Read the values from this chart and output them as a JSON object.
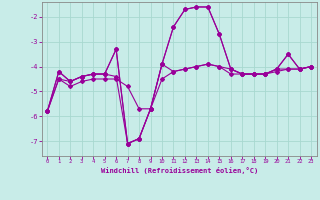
{
  "xlabel": "Windchill (Refroidissement éolien,°C)",
  "background_color": "#c8ece8",
  "grid_color": "#a8d8d0",
  "line_color": "#990099",
  "x": [
    0,
    1,
    2,
    3,
    4,
    5,
    6,
    7,
    8,
    9,
    10,
    11,
    12,
    13,
    14,
    15,
    16,
    17,
    18,
    19,
    20,
    21,
    22,
    23
  ],
  "line1": [
    -5.8,
    -4.2,
    -4.6,
    -4.4,
    -4.3,
    -4.3,
    -3.3,
    -7.1,
    -6.9,
    -5.7,
    -3.9,
    -2.4,
    -1.7,
    -1.6,
    -1.6,
    -2.7,
    -4.1,
    -4.3,
    -4.3,
    -4.3,
    -4.1,
    -3.5,
    -4.1,
    -4.0
  ],
  "line2": [
    -5.8,
    -4.5,
    -4.6,
    -4.4,
    -4.3,
    -4.3,
    -4.4,
    -7.1,
    -6.9,
    -5.7,
    -3.9,
    -4.2,
    -4.1,
    -4.0,
    -3.9,
    -4.0,
    -4.1,
    -4.3,
    -4.3,
    -4.3,
    -4.1,
    -4.1,
    -4.1,
    -4.0
  ],
  "line3": [
    -5.8,
    -4.2,
    -4.6,
    -4.4,
    -4.3,
    -4.3,
    -3.3,
    -7.1,
    -6.9,
    -5.7,
    -3.9,
    -2.4,
    -1.7,
    -1.6,
    -1.6,
    -2.7,
    -4.1,
    -4.3,
    -4.3,
    -4.3,
    -4.1,
    -3.5,
    -4.1,
    -4.0
  ],
  "line4": [
    -5.8,
    -4.5,
    -4.8,
    -4.6,
    -4.5,
    -4.5,
    -4.5,
    -4.8,
    -5.7,
    -5.7,
    -4.5,
    -4.2,
    -4.1,
    -4.0,
    -3.9,
    -4.0,
    -4.3,
    -4.3,
    -4.3,
    -4.3,
    -4.2,
    -4.1,
    -4.1,
    -4.0
  ],
  "ylim": [
    -7.6,
    -1.4
  ],
  "yticks": [
    -7,
    -6,
    -5,
    -4,
    -3,
    -2
  ],
  "xticks": [
    0,
    1,
    2,
    3,
    4,
    5,
    6,
    7,
    8,
    9,
    10,
    11,
    12,
    13,
    14,
    15,
    16,
    17,
    18,
    19,
    20,
    21,
    22,
    23
  ],
  "xlim": [
    -0.5,
    23.5
  ]
}
